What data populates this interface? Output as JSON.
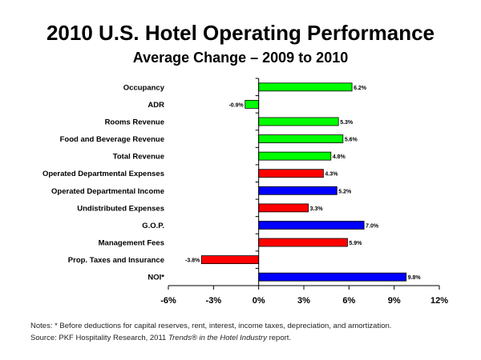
{
  "page": {
    "title": "2010 U.S. Hotel Operating Performance",
    "subtitle": "Average Change – 2009 to 2010",
    "note": "Notes: * Before deductions for capital reserves, rent, interest, income taxes, depreciation, and amortization.",
    "source_prefix": "Source: PKF Hospitality Research, 2011 ",
    "source_italic": "Trends® in the Hotel Industry",
    "source_suffix": " report."
  },
  "chart_data": {
    "type": "bar",
    "orientation": "horizontal",
    "title": "2010 U.S. Hotel Operating Performance",
    "subtitle": "Average Change – 2009 to 2010",
    "xlabel": "",
    "ylabel": "",
    "xlim": [
      -6,
      12
    ],
    "xticks": [
      -6,
      -3,
      0,
      3,
      6,
      9,
      12
    ],
    "xtick_labels": [
      "-6%",
      "-3%",
      "0%",
      "3%",
      "6%",
      "9%",
      "12%"
    ],
    "grid": false,
    "legend": "none",
    "colors": {
      "green": "#00ff00",
      "red": "#ff0000",
      "blue": "#0000ff"
    },
    "categories": [
      "Occupancy",
      "ADR",
      "Rooms Revenue",
      "Food and Beverage Revenue",
      "Total Revenue",
      "Operated Departmental Expenses",
      "Operated Departmental Income",
      "Undistributed Expenses",
      "G.O.P.",
      "Management Fees",
      "Prop. Taxes and Insurance",
      "NOI*"
    ],
    "values": [
      6.2,
      -0.9,
      5.3,
      5.6,
      4.8,
      4.3,
      5.2,
      3.3,
      7.0,
      5.9,
      -3.8,
      9.8
    ],
    "data_labels": [
      "6.2%",
      "-0.9%",
      "5.3%",
      "5.6%",
      "4.8%",
      "4.3%",
      "5.2%",
      "3.3%",
      "7.0%",
      "5.9%",
      "-3.8%",
      "9.8%"
    ],
    "bar_colors": [
      "green",
      "green",
      "green",
      "green",
      "green",
      "red",
      "blue",
      "red",
      "blue",
      "red",
      "red",
      "blue"
    ]
  }
}
